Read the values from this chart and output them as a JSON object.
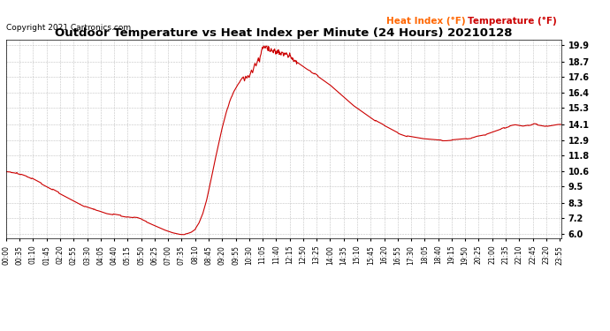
{
  "title": "Outdoor Temperature vs Heat Index per Minute (24 Hours) 20210128",
  "copyright": "Copyright 2021 Cartronics.com",
  "legend_heat_index": "Heat Index (°F)",
  "legend_temperature": "Temperature (°F)",
  "yticks": [
    6.0,
    7.2,
    8.3,
    9.5,
    10.6,
    11.8,
    12.9,
    14.1,
    15.3,
    16.4,
    17.6,
    18.7,
    19.9
  ],
  "ylim": [
    5.7,
    20.3
  ],
  "line_color": "#cc0000",
  "title_fontsize": 9.5,
  "copyright_fontsize": 6.5,
  "legend_fontsize": 7.5,
  "ytick_fontsize": 7,
  "xtick_fontsize": 5.5,
  "background_color": "#ffffff",
  "grid_color": "#bbbbbb",
  "heat_index_color": "#ff6600",
  "temperature_color": "#cc0000",
  "control_points": [
    [
      0,
      10.6
    ],
    [
      20,
      10.55
    ],
    [
      40,
      10.4
    ],
    [
      60,
      10.2
    ],
    [
      80,
      9.9
    ],
    [
      100,
      9.6
    ],
    [
      120,
      9.3
    ],
    [
      140,
      9.0
    ],
    [
      160,
      8.7
    ],
    [
      180,
      8.4
    ],
    [
      200,
      8.1
    ],
    [
      220,
      7.9
    ],
    [
      240,
      7.75
    ],
    [
      260,
      7.55
    ],
    [
      280,
      7.45
    ],
    [
      300,
      7.35
    ],
    [
      320,
      7.25
    ],
    [
      340,
      7.2
    ],
    [
      355,
      7.05
    ],
    [
      370,
      6.85
    ],
    [
      390,
      6.6
    ],
    [
      410,
      6.35
    ],
    [
      430,
      6.15
    ],
    [
      450,
      6.02
    ],
    [
      460,
      6.0
    ],
    [
      470,
      6.05
    ],
    [
      480,
      6.15
    ],
    [
      490,
      6.35
    ],
    [
      500,
      6.8
    ],
    [
      510,
      7.5
    ],
    [
      520,
      8.5
    ],
    [
      530,
      9.8
    ],
    [
      540,
      11.2
    ],
    [
      550,
      12.5
    ],
    [
      560,
      13.8
    ],
    [
      570,
      14.9
    ],
    [
      580,
      15.8
    ],
    [
      590,
      16.5
    ],
    [
      600,
      17.0
    ],
    [
      610,
      17.4
    ],
    [
      615,
      17.6
    ],
    [
      618,
      17.3
    ],
    [
      621,
      17.65
    ],
    [
      624,
      17.5
    ],
    [
      627,
      17.7
    ],
    [
      630,
      17.55
    ],
    [
      633,
      17.8
    ],
    [
      636,
      18.1
    ],
    [
      639,
      17.9
    ],
    [
      642,
      18.3
    ],
    [
      645,
      18.6
    ],
    [
      648,
      18.4
    ],
    [
      651,
      18.7
    ],
    [
      654,
      19.0
    ],
    [
      657,
      18.8
    ],
    [
      660,
      19.2
    ],
    [
      663,
      19.5
    ],
    [
      666,
      19.8
    ],
    [
      669,
      19.9
    ],
    [
      672,
      19.7
    ],
    [
      675,
      19.85
    ],
    [
      678,
      19.6
    ],
    [
      681,
      19.75
    ],
    [
      684,
      19.5
    ],
    [
      687,
      19.65
    ],
    [
      690,
      19.4
    ],
    [
      695,
      19.55
    ],
    [
      700,
      19.35
    ],
    [
      705,
      19.5
    ],
    [
      710,
      19.3
    ],
    [
      715,
      19.4
    ],
    [
      720,
      19.2
    ],
    [
      725,
      19.35
    ],
    [
      730,
      19.1
    ],
    [
      735,
      19.25
    ],
    [
      740,
      19.0
    ],
    [
      745,
      18.85
    ],
    [
      750,
      18.7
    ],
    [
      760,
      18.5
    ],
    [
      770,
      18.3
    ],
    [
      780,
      18.1
    ],
    [
      800,
      17.8
    ],
    [
      820,
      17.4
    ],
    [
      840,
      17.0
    ],
    [
      860,
      16.5
    ],
    [
      880,
      16.0
    ],
    [
      900,
      15.5
    ],
    [
      920,
      15.1
    ],
    [
      940,
      14.7
    ],
    [
      960,
      14.3
    ],
    [
      980,
      14.0
    ],
    [
      1000,
      13.7
    ],
    [
      1020,
      13.4
    ],
    [
      1040,
      13.2
    ],
    [
      1060,
      13.1
    ],
    [
      1080,
      13.0
    ],
    [
      1100,
      12.95
    ],
    [
      1120,
      12.9
    ],
    [
      1140,
      12.9
    ],
    [
      1160,
      12.95
    ],
    [
      1180,
      13.0
    ],
    [
      1200,
      13.05
    ],
    [
      1210,
      13.1
    ],
    [
      1220,
      13.2
    ],
    [
      1230,
      13.25
    ],
    [
      1240,
      13.3
    ],
    [
      1260,
      13.5
    ],
    [
      1280,
      13.7
    ],
    [
      1290,
      13.8
    ],
    [
      1300,
      13.9
    ],
    [
      1310,
      14.0
    ],
    [
      1320,
      14.05
    ],
    [
      1330,
      14.0
    ],
    [
      1340,
      13.95
    ],
    [
      1350,
      14.0
    ],
    [
      1360,
      14.05
    ],
    [
      1370,
      14.1
    ],
    [
      1380,
      14.05
    ],
    [
      1390,
      14.0
    ],
    [
      1400,
      13.95
    ],
    [
      1410,
      14.0
    ],
    [
      1420,
      14.05
    ],
    [
      1430,
      14.1
    ],
    [
      1439,
      14.1
    ]
  ]
}
